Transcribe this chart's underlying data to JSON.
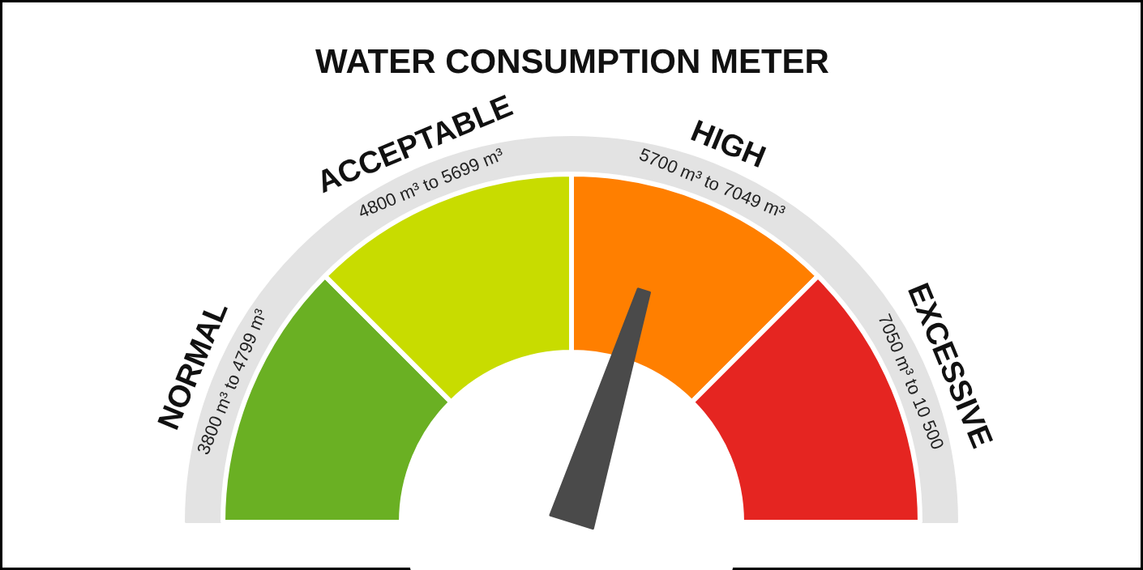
{
  "chart_data": {
    "type": "donut",
    "title": "WATER CONSUMPTION METER",
    "categories": [
      "NORMAL",
      "ACCEPTABLE",
      "HIGH",
      "EXCESSIVE"
    ],
    "values": [
      25,
      25,
      25,
      25
    ],
    "colors": [
      "#6ab023",
      "#c8dc00",
      "#ff7f00",
      "#e52521"
    ],
    "needle": "HIGH",
    "annotations": [
      "3800 m³ to 4799 m³",
      "4800 m³ to 5699 m³",
      "5700 m³ to 7049 m³",
      "7050 m³ to 10 500"
    ]
  }
}
